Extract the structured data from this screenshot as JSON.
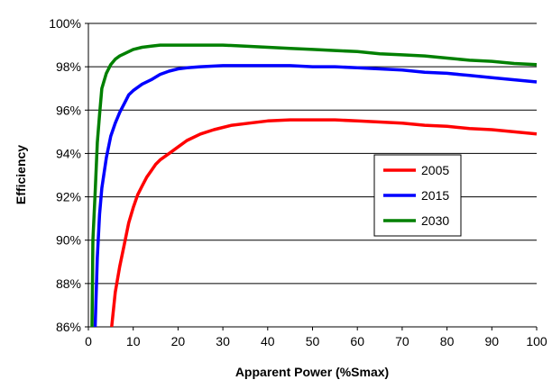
{
  "chart_data": {
    "type": "line",
    "title": "",
    "xlabel": "Apparent Power (%Smax)",
    "ylabel": "Efficiency",
    "xlim": [
      0,
      100
    ],
    "ylim": [
      86,
      100
    ],
    "x_ticks": [
      0,
      10,
      20,
      30,
      40,
      50,
      60,
      70,
      80,
      90,
      100
    ],
    "x_tick_labels": [
      "0",
      "10",
      "20",
      "30",
      "40",
      "50",
      "60",
      "70",
      "80",
      "90",
      "100"
    ],
    "y_ticks": [
      86,
      88,
      90,
      92,
      94,
      96,
      98,
      100
    ],
    "y_tick_labels": [
      "86%",
      "88%",
      "90%",
      "92%",
      "94%",
      "96%",
      "98%",
      "100%"
    ],
    "grid": "horizontal",
    "legend": "center-right",
    "series": [
      {
        "name": "2005",
        "color": "#ff0000",
        "points": [
          [
            5.2,
            86
          ],
          [
            6,
            87.6
          ],
          [
            7,
            88.8
          ],
          [
            8,
            89.8
          ],
          [
            9,
            90.8
          ],
          [
            10,
            91.5
          ],
          [
            11,
            92.1
          ],
          [
            12,
            92.5
          ],
          [
            13,
            92.9
          ],
          [
            14,
            93.2
          ],
          [
            15,
            93.5
          ],
          [
            16,
            93.7
          ],
          [
            18,
            94
          ],
          [
            20,
            94.3
          ],
          [
            22,
            94.6
          ],
          [
            25,
            94.9
          ],
          [
            28,
            95.1
          ],
          [
            32,
            95.3
          ],
          [
            36,
            95.4
          ],
          [
            40,
            95.5
          ],
          [
            45,
            95.55
          ],
          [
            50,
            95.55
          ],
          [
            55,
            95.55
          ],
          [
            60,
            95.5
          ],
          [
            65,
            95.45
          ],
          [
            70,
            95.4
          ],
          [
            75,
            95.3
          ],
          [
            80,
            95.25
          ],
          [
            85,
            95.15
          ],
          [
            90,
            95.1
          ],
          [
            95,
            95
          ],
          [
            100,
            94.9
          ]
        ]
      },
      {
        "name": "2015",
        "color": "#0000ff",
        "points": [
          [
            1.5,
            86
          ],
          [
            2,
            89.2
          ],
          [
            2.5,
            91.2
          ],
          [
            3,
            92.4
          ],
          [
            4,
            93.8
          ],
          [
            5,
            94.8
          ],
          [
            6,
            95.4
          ],
          [
            7,
            95.9
          ],
          [
            8,
            96.3
          ],
          [
            9,
            96.7
          ],
          [
            10,
            96.9
          ],
          [
            12,
            97.2
          ],
          [
            14,
            97.4
          ],
          [
            16,
            97.65
          ],
          [
            18,
            97.8
          ],
          [
            20,
            97.9
          ],
          [
            22,
            97.95
          ],
          [
            25,
            98
          ],
          [
            30,
            98.05
          ],
          [
            35,
            98.05
          ],
          [
            40,
            98.05
          ],
          [
            45,
            98.05
          ],
          [
            50,
            98
          ],
          [
            55,
            98
          ],
          [
            60,
            97.95
          ],
          [
            65,
            97.9
          ],
          [
            70,
            97.85
          ],
          [
            75,
            97.75
          ],
          [
            80,
            97.7
          ],
          [
            85,
            97.6
          ],
          [
            90,
            97.5
          ],
          [
            95,
            97.4
          ],
          [
            100,
            97.3
          ]
        ]
      },
      {
        "name": "2030",
        "color": "#008000",
        "points": [
          [
            0.8,
            86
          ],
          [
            1,
            90
          ],
          [
            1.5,
            92.2
          ],
          [
            2,
            94.5
          ],
          [
            2.5,
            95.8
          ],
          [
            3,
            97
          ],
          [
            4,
            97.7
          ],
          [
            5,
            98.1
          ],
          [
            6,
            98.35
          ],
          [
            7,
            98.5
          ],
          [
            8,
            98.6
          ],
          [
            10,
            98.8
          ],
          [
            12,
            98.9
          ],
          [
            14,
            98.95
          ],
          [
            16,
            99
          ],
          [
            20,
            99
          ],
          [
            25,
            99
          ],
          [
            30,
            99
          ],
          [
            35,
            98.95
          ],
          [
            40,
            98.9
          ],
          [
            45,
            98.85
          ],
          [
            50,
            98.8
          ],
          [
            55,
            98.75
          ],
          [
            60,
            98.7
          ],
          [
            65,
            98.6
          ],
          [
            70,
            98.55
          ],
          [
            75,
            98.5
          ],
          [
            80,
            98.4
          ],
          [
            85,
            98.3
          ],
          [
            90,
            98.25
          ],
          [
            95,
            98.15
          ],
          [
            100,
            98.1
          ]
        ]
      }
    ]
  }
}
